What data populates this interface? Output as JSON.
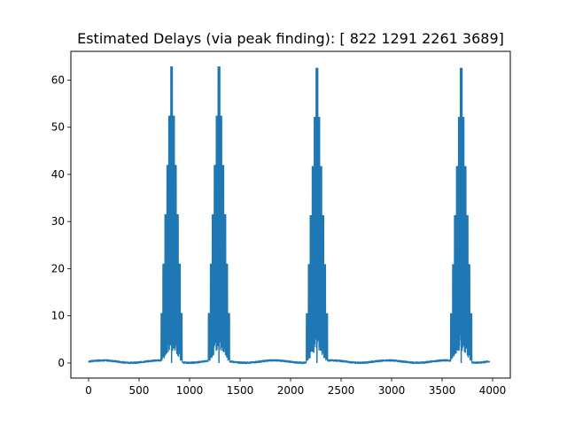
{
  "chart_data": {
    "type": "line",
    "title": "Estimated Delays (via peak finding): [ 822 1291 2261 3689]",
    "xlabel": "",
    "ylabel": "",
    "xlim": [
      -175,
      4175
    ],
    "ylim": [
      -3.2,
      66.1
    ],
    "x_ticks": [
      0,
      500,
      1000,
      1500,
      2000,
      2500,
      3000,
      3500,
      4000
    ],
    "y_ticks": [
      0,
      10,
      20,
      30,
      40,
      50,
      60
    ],
    "grid": false,
    "legend": "none",
    "series": [
      {
        "color": "#1f77b4",
        "x_range": [
          0,
          3969
        ],
        "baseline": 0.3,
        "peaks": [
          {
            "center": 822,
            "height": 62.8,
            "half_width": 115
          },
          {
            "center": 1291,
            "height": 62.8,
            "half_width": 115
          },
          {
            "center": 2261,
            "height": 62.5,
            "half_width": 115
          },
          {
            "center": 3689,
            "height": 62.5,
            "half_width": 115
          }
        ]
      }
    ]
  }
}
